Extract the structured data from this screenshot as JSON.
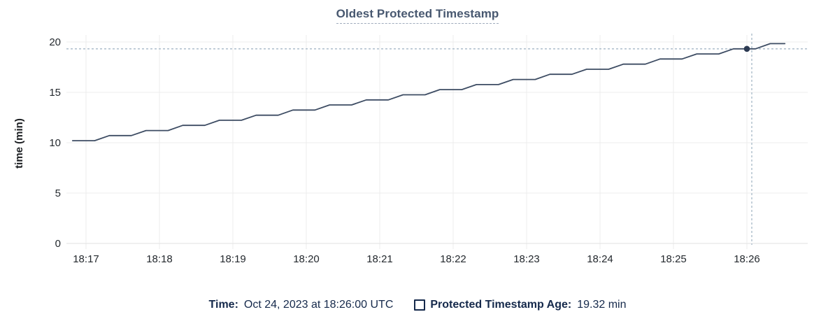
{
  "title": "Oldest Protected Timestamp",
  "colors": {
    "line": "#3d4c63",
    "marker": "#2c3a52",
    "crosshair": "#a6b8c7",
    "grid": "#ececec",
    "axis_line": "#e2e2e2",
    "axis_text": "#24292e",
    "navy_text": "#15294b",
    "title_text": "#485870"
  },
  "footer": {
    "time_label": "Time:",
    "time_value": "Oct 24, 2023 at 18:26:00 UTC",
    "series_checkbox_icon": "empty-square-icon",
    "series_label": "Protected Timestamp Age:",
    "series_value": "19.32 min"
  },
  "chart_data": {
    "type": "line",
    "title": "Oldest Protected Timestamp",
    "xlabel": "",
    "ylabel": "time (min)",
    "ylim": [
      0,
      20
    ],
    "y_ticks": [
      0,
      5,
      10,
      15,
      20
    ],
    "grid": true,
    "x_ticks": [
      {
        "t": 0,
        "label": "18:17"
      },
      {
        "t": 60,
        "label": "18:18"
      },
      {
        "t": 120,
        "label": "18:19"
      },
      {
        "t": 180,
        "label": "18:20"
      },
      {
        "t": 240,
        "label": "18:21"
      },
      {
        "t": 300,
        "label": "18:22"
      },
      {
        "t": 360,
        "label": "18:23"
      },
      {
        "t": 420,
        "label": "18:24"
      },
      {
        "t": 480,
        "label": "18:25"
      },
      {
        "t": 540,
        "label": "18:26"
      }
    ],
    "x_unit": "seconds after 18:17:00 UTC",
    "series": [
      {
        "name": "Protected Timestamp Age",
        "unit": "min",
        "points": [
          [
            -11,
            10.2
          ],
          [
            7,
            10.2
          ],
          [
            19,
            10.71
          ],
          [
            37,
            10.71
          ],
          [
            49,
            11.21
          ],
          [
            67,
            11.21
          ],
          [
            79,
            11.72
          ],
          [
            97,
            11.72
          ],
          [
            109,
            12.23
          ],
          [
            127,
            12.23
          ],
          [
            139,
            12.73
          ],
          [
            157,
            12.73
          ],
          [
            169,
            13.24
          ],
          [
            187,
            13.24
          ],
          [
            199,
            13.75
          ],
          [
            217,
            13.75
          ],
          [
            229,
            14.25
          ],
          [
            247,
            14.25
          ],
          [
            259,
            14.76
          ],
          [
            277,
            14.76
          ],
          [
            289,
            15.27
          ],
          [
            307,
            15.27
          ],
          [
            319,
            15.77
          ],
          [
            337,
            15.77
          ],
          [
            349,
            16.28
          ],
          [
            367,
            16.28
          ],
          [
            379,
            16.79
          ],
          [
            397,
            16.79
          ],
          [
            409,
            17.29
          ],
          [
            427,
            17.29
          ],
          [
            439,
            17.8
          ],
          [
            457,
            17.8
          ],
          [
            469,
            18.31
          ],
          [
            487,
            18.31
          ],
          [
            499,
            18.81
          ],
          [
            517,
            18.81
          ],
          [
            529,
            19.32
          ],
          [
            547,
            19.32
          ],
          [
            559,
            19.83
          ],
          [
            571,
            19.83
          ]
        ]
      }
    ],
    "highlight": {
      "time_label": "18:26:00",
      "seconds": 540,
      "value": 19.32
    }
  }
}
